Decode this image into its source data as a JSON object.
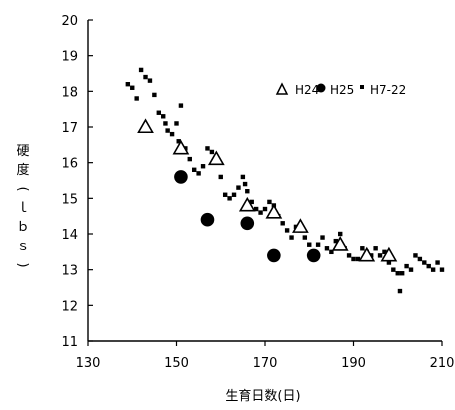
{
  "chart_data": {
    "type": "scatter",
    "xlabel": "生育日数(日)",
    "ylabel": "硬度(ｌｂｓ)",
    "xlim": [
      130,
      210
    ],
    "ylim": [
      11,
      20
    ],
    "xticks": [
      "130",
      "150",
      "170",
      "190",
      "210"
    ],
    "yticks": [
      "11",
      "12",
      "13",
      "14",
      "15",
      "16",
      "17",
      "18",
      "19",
      "20"
    ],
    "legend_position": "top-right",
    "series": [
      {
        "name": "H24",
        "marker": "triangle-open",
        "color": "#000000",
        "points": [
          [
            143,
            17.0
          ],
          [
            151,
            16.4
          ],
          [
            159,
            16.1
          ],
          [
            166,
            14.8
          ],
          [
            172,
            14.6
          ],
          [
            178,
            14.2
          ],
          [
            187,
            13.7
          ],
          [
            193,
            13.4
          ],
          [
            198,
            13.4
          ]
        ]
      },
      {
        "name": "H25",
        "marker": "circle-filled",
        "color": "#000000",
        "points": [
          [
            151,
            15.6
          ],
          [
            157,
            14.4
          ],
          [
            166,
            14.3
          ],
          [
            172,
            13.4
          ],
          [
            181,
            13.4
          ]
        ]
      },
      {
        "name": "H7-22",
        "marker": "square-small",
        "color": "#000000",
        "points": [
          [
            139,
            18.2
          ],
          [
            140,
            18.1
          ],
          [
            141,
            17.8
          ],
          [
            142,
            18.6
          ],
          [
            143,
            18.4
          ],
          [
            144,
            18.3
          ],
          [
            145,
            17.9
          ],
          [
            146,
            17.4
          ],
          [
            147,
            17.3
          ],
          [
            147.5,
            17.1
          ],
          [
            148,
            16.9
          ],
          [
            149,
            16.8
          ],
          [
            150,
            17.1
          ],
          [
            150.5,
            16.6
          ],
          [
            151,
            17.6
          ],
          [
            152,
            16.4
          ],
          [
            153,
            16.1
          ],
          [
            154,
            15.8
          ],
          [
            155,
            15.7
          ],
          [
            156,
            15.9
          ],
          [
            157,
            16.4
          ],
          [
            158,
            16.3
          ],
          [
            159,
            16.1
          ],
          [
            160,
            15.6
          ],
          [
            161,
            15.1
          ],
          [
            162,
            15.0
          ],
          [
            163,
            15.1
          ],
          [
            164,
            15.3
          ],
          [
            165,
            15.6
          ],
          [
            165.5,
            15.4
          ],
          [
            166,
            15.2
          ],
          [
            167,
            14.9
          ],
          [
            168,
            14.7
          ],
          [
            169,
            14.6
          ],
          [
            170,
            14.7
          ],
          [
            171,
            14.9
          ],
          [
            172,
            14.8
          ],
          [
            173,
            14.5
          ],
          [
            174,
            14.3
          ],
          [
            175,
            14.1
          ],
          [
            176,
            13.9
          ],
          [
            177,
            14.2
          ],
          [
            178,
            14.1
          ],
          [
            179,
            13.9
          ],
          [
            180,
            13.7
          ],
          [
            181,
            13.5
          ],
          [
            182,
            13.7
          ],
          [
            183,
            13.9
          ],
          [
            184,
            13.6
          ],
          [
            185,
            13.5
          ],
          [
            186,
            13.8
          ],
          [
            187,
            14.0
          ],
          [
            188,
            13.6
          ],
          [
            189,
            13.4
          ],
          [
            190,
            13.3
          ],
          [
            191,
            13.3
          ],
          [
            192,
            13.6
          ],
          [
            193,
            13.5
          ],
          [
            194,
            13.4
          ],
          [
            195,
            13.6
          ],
          [
            196,
            13.4
          ],
          [
            197,
            13.5
          ],
          [
            198,
            13.2
          ],
          [
            199,
            13.0
          ],
          [
            200,
            12.9
          ],
          [
            200.5,
            12.4
          ],
          [
            201,
            12.9
          ],
          [
            202,
            13.1
          ],
          [
            203,
            13.0
          ],
          [
            204,
            13.4
          ],
          [
            205,
            13.3
          ],
          [
            206,
            13.2
          ],
          [
            207,
            13.1
          ],
          [
            208,
            13.0
          ],
          [
            209,
            13.2
          ],
          [
            210,
            13.0
          ]
        ]
      }
    ]
  }
}
